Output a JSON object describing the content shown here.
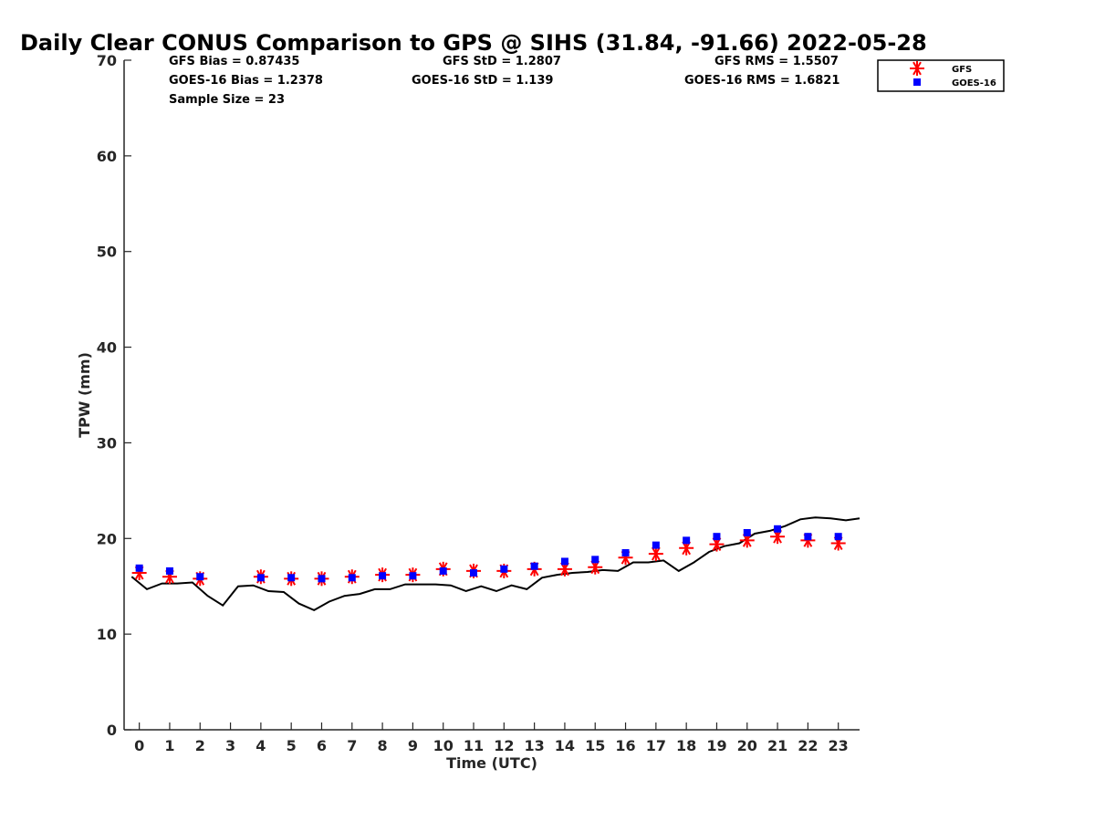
{
  "chart_data": {
    "type": "scatter",
    "title": "Daily Clear CONUS Comparison to GPS @ SIHS (31.84, -91.66) 2022-05-28",
    "xlabel": "Time (UTC)",
    "ylabel": "TPW (mm)",
    "xlim": [
      -0.5,
      23.7
    ],
    "ylim": [
      0,
      70
    ],
    "x_ticks": [
      0,
      1,
      2,
      3,
      4,
      5,
      6,
      7,
      8,
      9,
      10,
      11,
      12,
      13,
      14,
      15,
      16,
      17,
      18,
      19,
      20,
      21,
      22,
      23
    ],
    "y_ticks": [
      0,
      10,
      20,
      30,
      40,
      50,
      60,
      70
    ],
    "grid": false,
    "legend_position": "top-right",
    "stats": {
      "gfs_bias": "GFS Bias = 0.87435",
      "gfs_std": "GFS StD = 1.2807",
      "gfs_rms": "GFS RMS = 1.5507",
      "goes_bias": "GOES-16 Bias = 1.2378",
      "goes_std": "GOES-16 StD = 1.139",
      "goes_rms": "GOES-16 RMS = 1.6821",
      "sample_size": "Sample Size = 23"
    },
    "series": [
      {
        "name": "GFS",
        "marker": "asterisk",
        "color": "#ff0000",
        "x": [
          0,
          1,
          2,
          4,
          5,
          6,
          7,
          8,
          9,
          10,
          11,
          12,
          13,
          14,
          15,
          16,
          17,
          18,
          19,
          20,
          21,
          22,
          23
        ],
        "y": [
          16.4,
          16.0,
          15.8,
          16.0,
          15.8,
          15.8,
          16.0,
          16.2,
          16.2,
          16.8,
          16.6,
          16.6,
          16.8,
          16.8,
          17.0,
          18.0,
          18.4,
          19.0,
          19.4,
          19.8,
          20.2,
          19.8,
          19.5
        ]
      },
      {
        "name": "GOES-16",
        "marker": "square",
        "color": "#0000ff",
        "x": [
          0,
          1,
          2,
          4,
          5,
          6,
          7,
          8,
          9,
          10,
          11,
          12,
          13,
          14,
          15,
          16,
          17,
          18,
          19,
          20,
          21,
          22,
          23
        ],
        "y": [
          16.9,
          16.6,
          16.0,
          15.9,
          15.9,
          15.8,
          15.9,
          16.1,
          16.1,
          16.6,
          16.4,
          16.8,
          17.1,
          17.6,
          17.8,
          18.5,
          19.3,
          19.8,
          20.2,
          20.6,
          21.0,
          20.2,
          20.2
        ]
      },
      {
        "name": "",
        "line": true,
        "color": "#000000",
        "x": [
          -0.25,
          0.25,
          0.75,
          1.25,
          1.75,
          2.25,
          2.75,
          3.25,
          3.75,
          4.25,
          4.75,
          5.25,
          5.75,
          6.25,
          6.75,
          7.25,
          7.75,
          8.25,
          8.75,
          9.25,
          9.75,
          10.25,
          10.75,
          11.25,
          11.75,
          12.25,
          12.75,
          13.25,
          13.75,
          14.25,
          14.75,
          15.25,
          15.75,
          16.25,
          16.75,
          17.25,
          17.75,
          18.25,
          18.75,
          19.25,
          19.75,
          20.25,
          20.75,
          21.25,
          21.75,
          22.25,
          22.75,
          23.25,
          23.7
        ],
        "y": [
          16.0,
          14.7,
          15.3,
          15.3,
          15.4,
          14.0,
          13.0,
          15.0,
          15.1,
          14.5,
          14.4,
          13.2,
          12.5,
          13.4,
          14.0,
          14.2,
          14.7,
          14.7,
          15.2,
          15.2,
          15.2,
          15.1,
          14.5,
          15.0,
          14.5,
          15.1,
          14.7,
          15.9,
          16.2,
          16.4,
          16.5,
          16.7,
          16.6,
          17.5,
          17.5,
          17.7,
          16.6,
          17.5,
          18.6,
          19.2,
          19.5,
          20.5,
          20.8,
          21.3,
          22.0,
          22.2,
          22.1,
          21.9,
          22.1
        ]
      }
    ]
  }
}
